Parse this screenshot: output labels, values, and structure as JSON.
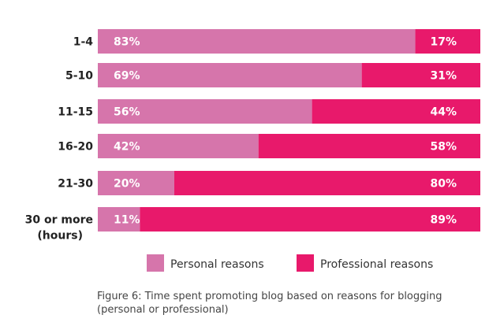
{
  "caption": "Figure 6: Time spent promoting blog based on reasons for blogging (personal or professional)",
  "colors": {
    "personal": "#d675ab",
    "professional": "#e8196b"
  },
  "chart_data": {
    "type": "bar",
    "orientation": "horizontal",
    "stacked": true,
    "categories": [
      "1-4",
      "5-10",
      "11-15",
      "16-20",
      "21-30",
      "30 or more"
    ],
    "category_sublabels": {
      "30 or more": "(hours)"
    },
    "series": [
      {
        "name": "Personal reasons",
        "values": [
          83,
          69,
          56,
          42,
          20,
          11
        ]
      },
      {
        "name": "Professional reasons",
        "values": [
          17,
          31,
          44,
          58,
          80,
          89
        ]
      }
    ],
    "value_format": "{v}%",
    "xlim": [
      0,
      100
    ],
    "legend_position": "bottom",
    "grid": false
  }
}
